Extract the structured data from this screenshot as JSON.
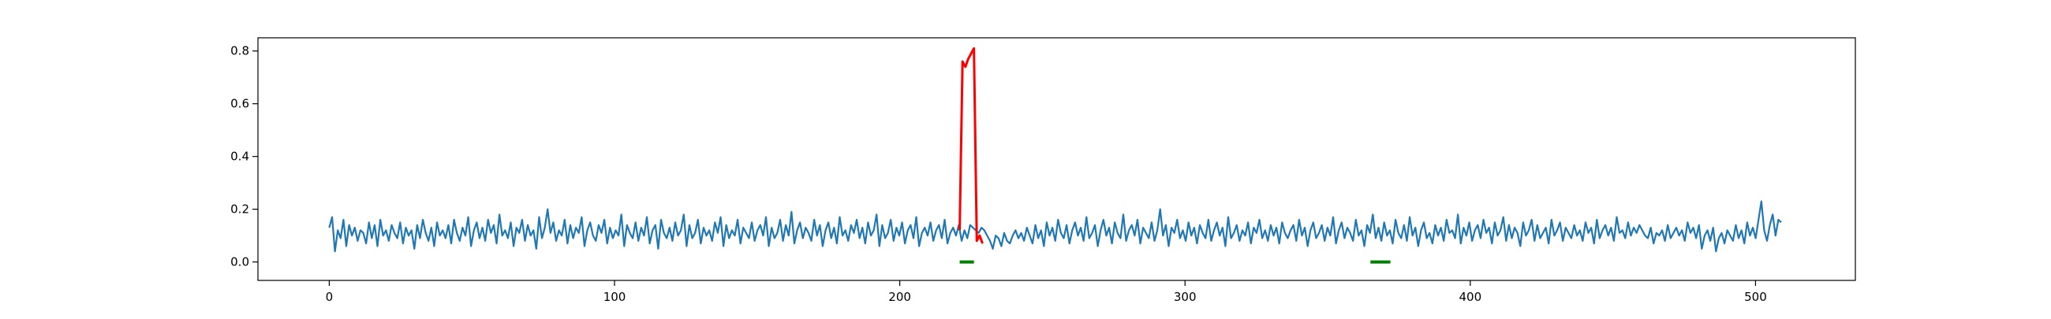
{
  "chart_data": {
    "type": "line",
    "title": "",
    "xlabel": "",
    "ylabel": "",
    "xlim": [
      -25,
      535
    ],
    "ylim": [
      -0.07,
      0.85
    ],
    "xticks": [
      0,
      100,
      200,
      300,
      400,
      500
    ],
    "yticks": [
      0.0,
      0.2,
      0.4,
      0.6,
      0.8
    ],
    "xtick_labels": [
      "0",
      "100",
      "200",
      "300",
      "400",
      "500"
    ],
    "ytick_labels": [
      "0.0",
      "0.2",
      "0.4",
      "0.6",
      "0.8"
    ],
    "grid": false,
    "legend": "none",
    "series_base": {
      "x_start": 0,
      "x_end": 509,
      "values": [
        0.13,
        0.17,
        0.04,
        0.12,
        0.09,
        0.16,
        0.06,
        0.14,
        0.1,
        0.13,
        0.08,
        0.12,
        0.11,
        0.07,
        0.15,
        0.09,
        0.14,
        0.06,
        0.16,
        0.1,
        0.12,
        0.08,
        0.14,
        0.11,
        0.09,
        0.15,
        0.07,
        0.13,
        0.1,
        0.12,
        0.05,
        0.14,
        0.09,
        0.16,
        0.11,
        0.08,
        0.13,
        0.06,
        0.15,
        0.1,
        0.12,
        0.09,
        0.14,
        0.07,
        0.16,
        0.11,
        0.08,
        0.13,
        0.1,
        0.17,
        0.06,
        0.12,
        0.15,
        0.09,
        0.13,
        0.08,
        0.16,
        0.11,
        0.14,
        0.07,
        0.18,
        0.1,
        0.12,
        0.09,
        0.15,
        0.06,
        0.13,
        0.11,
        0.16,
        0.08,
        0.14,
        0.1,
        0.12,
        0.05,
        0.17,
        0.09,
        0.13,
        0.2,
        0.11,
        0.15,
        0.08,
        0.12,
        0.1,
        0.16,
        0.07,
        0.14,
        0.09,
        0.13,
        0.11,
        0.17,
        0.06,
        0.12,
        0.15,
        0.1,
        0.08,
        0.14,
        0.11,
        0.16,
        0.07,
        0.13,
        0.09,
        0.12,
        0.1,
        0.18,
        0.06,
        0.14,
        0.11,
        0.09,
        0.15,
        0.08,
        0.13,
        0.1,
        0.17,
        0.07,
        0.12,
        0.14,
        0.05,
        0.16,
        0.11,
        0.09,
        0.13,
        0.08,
        0.15,
        0.1,
        0.12,
        0.18,
        0.06,
        0.14,
        0.09,
        0.11,
        0.16,
        0.07,
        0.13,
        0.1,
        0.12,
        0.08,
        0.15,
        0.11,
        0.17,
        0.06,
        0.14,
        0.09,
        0.12,
        0.1,
        0.16,
        0.07,
        0.13,
        0.11,
        0.09,
        0.15,
        0.08,
        0.12,
        0.14,
        0.1,
        0.17,
        0.06,
        0.13,
        0.09,
        0.11,
        0.16,
        0.08,
        0.14,
        0.1,
        0.19,
        0.07,
        0.12,
        0.15,
        0.09,
        0.13,
        0.11,
        0.08,
        0.16,
        0.1,
        0.14,
        0.06,
        0.12,
        0.15,
        0.09,
        0.13,
        0.07,
        0.17,
        0.1,
        0.12,
        0.08,
        0.14,
        0.11,
        0.16,
        0.09,
        0.13,
        0.07,
        0.15,
        0.1,
        0.12,
        0.18,
        0.06,
        0.14,
        0.09,
        0.11,
        0.16,
        0.08,
        0.13,
        0.1,
        0.15,
        0.07,
        0.12,
        0.14,
        0.09,
        0.17,
        0.06,
        0.11,
        0.13,
        0.1,
        0.15,
        0.08,
        0.12,
        0.14,
        0.09,
        0.16,
        0.07,
        0.11,
        0.13,
        0.1,
        0.14,
        0.08,
        0.12,
        0.09,
        0.14,
        0.13,
        0.12,
        0.11,
        0.13,
        0.12,
        0.1,
        0.08,
        0.05,
        0.1,
        0.09,
        0.06,
        0.11,
        0.08,
        0.07,
        0.1,
        0.12,
        0.09,
        0.11,
        0.08,
        0.13,
        0.1,
        0.07,
        0.14,
        0.09,
        0.12,
        0.06,
        0.15,
        0.1,
        0.13,
        0.08,
        0.16,
        0.11,
        0.09,
        0.14,
        0.07,
        0.12,
        0.15,
        0.1,
        0.13,
        0.08,
        0.17,
        0.09,
        0.11,
        0.14,
        0.06,
        0.12,
        0.16,
        0.1,
        0.13,
        0.07,
        0.15,
        0.11,
        0.09,
        0.18,
        0.08,
        0.12,
        0.14,
        0.1,
        0.16,
        0.07,
        0.13,
        0.11,
        0.09,
        0.15,
        0.08,
        0.12,
        0.2,
        0.1,
        0.14,
        0.06,
        0.13,
        0.11,
        0.16,
        0.09,
        0.12,
        0.08,
        0.15,
        0.1,
        0.13,
        0.07,
        0.14,
        0.11,
        0.09,
        0.16,
        0.08,
        0.12,
        0.15,
        0.1,
        0.13,
        0.06,
        0.17,
        0.09,
        0.11,
        0.14,
        0.08,
        0.12,
        0.1,
        0.15,
        0.07,
        0.13,
        0.11,
        0.16,
        0.09,
        0.12,
        0.08,
        0.14,
        0.1,
        0.13,
        0.07,
        0.15,
        0.11,
        0.09,
        0.12,
        0.14,
        0.08,
        0.16,
        0.1,
        0.13,
        0.06,
        0.12,
        0.15,
        0.09,
        0.11,
        0.14,
        0.08,
        0.13,
        0.1,
        0.17,
        0.07,
        0.12,
        0.15,
        0.09,
        0.13,
        0.11,
        0.08,
        0.16,
        0.1,
        0.12,
        0.06,
        0.14,
        0.11,
        0.18,
        0.09,
        0.13,
        0.08,
        0.15,
        0.1,
        0.12,
        0.07,
        0.16,
        0.11,
        0.09,
        0.14,
        0.08,
        0.17,
        0.1,
        0.13,
        0.06,
        0.12,
        0.15,
        0.09,
        0.11,
        0.07,
        0.14,
        0.1,
        0.13,
        0.08,
        0.16,
        0.11,
        0.12,
        0.09,
        0.18,
        0.07,
        0.13,
        0.1,
        0.15,
        0.08,
        0.12,
        0.14,
        0.09,
        0.16,
        0.11,
        0.13,
        0.07,
        0.15,
        0.1,
        0.12,
        0.17,
        0.08,
        0.14,
        0.09,
        0.13,
        0.11,
        0.06,
        0.15,
        0.1,
        0.12,
        0.16,
        0.08,
        0.14,
        0.09,
        0.11,
        0.13,
        0.07,
        0.16,
        0.1,
        0.12,
        0.15,
        0.08,
        0.13,
        0.11,
        0.09,
        0.14,
        0.1,
        0.12,
        0.08,
        0.15,
        0.11,
        0.13,
        0.07,
        0.16,
        0.09,
        0.12,
        0.14,
        0.1,
        0.13,
        0.08,
        0.17,
        0.11,
        0.12,
        0.09,
        0.15,
        0.1,
        0.13,
        0.11,
        0.14,
        0.12,
        0.1,
        0.09,
        0.13,
        0.07,
        0.11,
        0.1,
        0.12,
        0.08,
        0.14,
        0.09,
        0.11,
        0.13,
        0.1,
        0.12,
        0.08,
        0.15,
        0.11,
        0.13,
        0.09,
        0.14,
        0.05,
        0.1,
        0.12,
        0.08,
        0.13,
        0.04,
        0.09,
        0.11,
        0.07,
        0.12,
        0.1,
        0.08,
        0.14,
        0.09,
        0.12,
        0.07,
        0.15,
        0.1,
        0.13,
        0.09,
        0.16,
        0.23,
        0.12,
        0.08,
        0.14,
        0.18,
        0.1,
        0.16,
        0.15
      ],
      "color": "#1f77b4"
    },
    "series_anomaly_high": {
      "x": [
        221,
        222,
        223,
        224,
        225,
        226,
        227,
        228,
        229
      ],
      "values": [
        0.12,
        0.76,
        0.74,
        0.77,
        0.79,
        0.81,
        0.08,
        0.1,
        0.07
      ],
      "color": "#ff0000"
    },
    "series_anomaly_low": {
      "x_start": 365,
      "x_end": 372,
      "y": 0.0,
      "values": [
        0.0,
        0.0,
        0.0,
        0.0,
        0.0,
        0.0,
        0.0,
        0.0
      ],
      "color": "#008000"
    },
    "series_marker_low": {
      "x_start": 221,
      "x_end": 226,
      "y": 0.0,
      "color": "#008000"
    }
  }
}
